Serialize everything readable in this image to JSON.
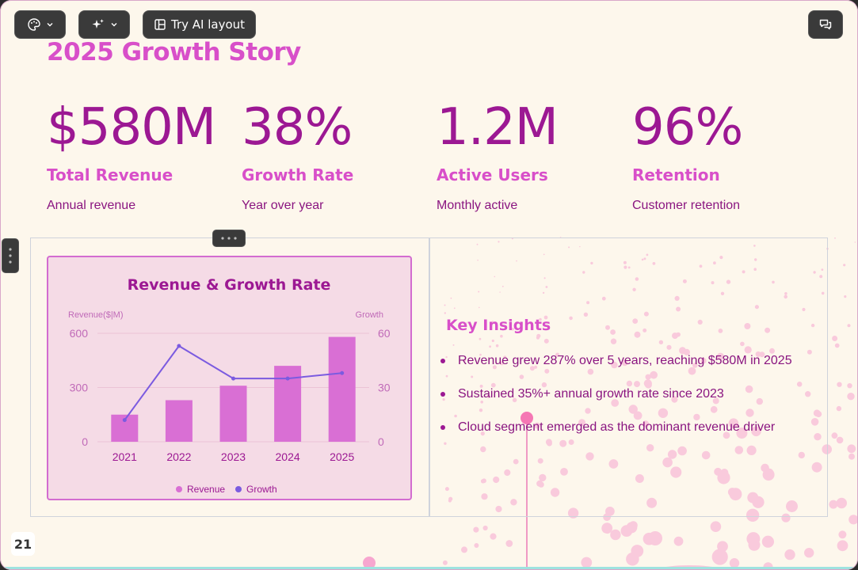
{
  "toolbar": {
    "theme_icon": "palette-icon",
    "ai_icon": "sparkle-icon",
    "ai_layout_label": "Try AI layout",
    "comment_icon": "comment-icon"
  },
  "slide": {
    "title": "2025 Growth Story",
    "page_number": "21",
    "stats": [
      {
        "value": "$580M",
        "label": "Total Revenue",
        "sub": "Annual revenue"
      },
      {
        "value": "38%",
        "label": "Growth Rate",
        "sub": "Year over year"
      },
      {
        "value": "1.2M",
        "label": "Active Users",
        "sub": "Monthly active"
      },
      {
        "value": "96%",
        "label": "Retention",
        "sub": "Customer retention"
      }
    ],
    "insights": {
      "title": "Key Insights",
      "items": [
        "Revenue grew 287% over 5 years, reaching $580M in 2025",
        "Sustained 35%+ annual growth rate since 2023",
        "Cloud segment emerged as the dominant revenue driver"
      ]
    }
  },
  "chart_data": {
    "type": "bar",
    "title": "Revenue & Growth Rate",
    "ylabel": "Revenue($|M)",
    "y2label": "Growth",
    "categories": [
      "2021",
      "2022",
      "2023",
      "2024",
      "2025"
    ],
    "ylim": [
      0,
      600
    ],
    "y2lim": [
      0,
      60
    ],
    "yticks": [
      "0",
      "300",
      "600"
    ],
    "y2ticks": [
      "0",
      "30",
      "60"
    ],
    "series": [
      {
        "name": "Revenue",
        "type": "bar",
        "axis": "left",
        "color": "#d96fd4",
        "values": [
          150,
          230,
          310,
          420,
          580
        ]
      },
      {
        "name": "Growth",
        "type": "line",
        "axis": "right",
        "color": "#7b5be0",
        "values": [
          12,
          53,
          35,
          35,
          38
        ]
      }
    ],
    "legend": "bottom",
    "grid": true
  }
}
